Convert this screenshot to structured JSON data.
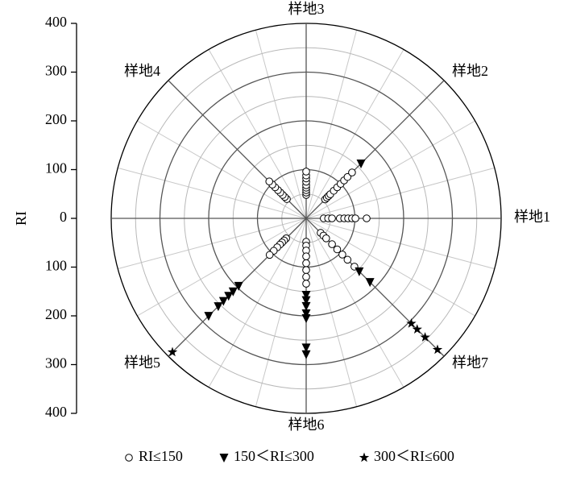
{
  "chart_data": {
    "type": "polar-scatter",
    "axis_label": "RI",
    "categories": [
      "样地1",
      "样地2",
      "样地3",
      "样地4",
      null,
      "样地5",
      "样地6",
      "样地7"
    ],
    "rlim": [
      0,
      400
    ],
    "rticks": [
      0,
      100,
      200,
      300,
      400
    ],
    "rgrid_minor": [
      50,
      150,
      250,
      350
    ],
    "grid": true,
    "legend": "bottom",
    "series": [
      {
        "name": "RI≤150",
        "marker": "circle",
        "color": "#000000",
        "values": [
          [
            36,
            45,
            53,
            69,
            78,
            86,
            94,
            101,
            124
          ],
          [
            55,
            60,
            65,
            70,
            80,
            90,
            100,
            110,
            120,
            133
          ],
          [
            48,
            53,
            58,
            63,
            68,
            75,
            82,
            88,
            96
          ],
          [
            56,
            62,
            68,
            75,
            82,
            90,
            98,
            107
          ],
          [],
          [
            58,
            64,
            70,
            76,
            84,
            94,
            106
          ],
          [
            48,
            56,
            66,
            78,
            92,
            106,
            120,
            134
          ],
          [
            42,
            50,
            58,
            75,
            90,
            105,
            120,
            140
          ]
        ]
      },
      {
        "name": "150＜RI≤300",
        "marker": "triangle",
        "color": "#000000",
        "values": [
          [],
          [
            159
          ],
          [],
          [],
          [],
          [
            196,
            212,
            225,
            240,
            255,
            283
          ],
          [
            157,
            168,
            180,
            195,
            205,
            265,
            279
          ],
          [
            154,
            185
          ]
        ]
      },
      {
        "name": "300＜RI≤600",
        "marker": "star",
        "color": "#000000",
        "values": [
          [],
          [],
          [],
          [],
          [],
          [
            388
          ],
          [],
          [
            305,
            322,
            345,
            381
          ]
        ]
      }
    ]
  }
}
